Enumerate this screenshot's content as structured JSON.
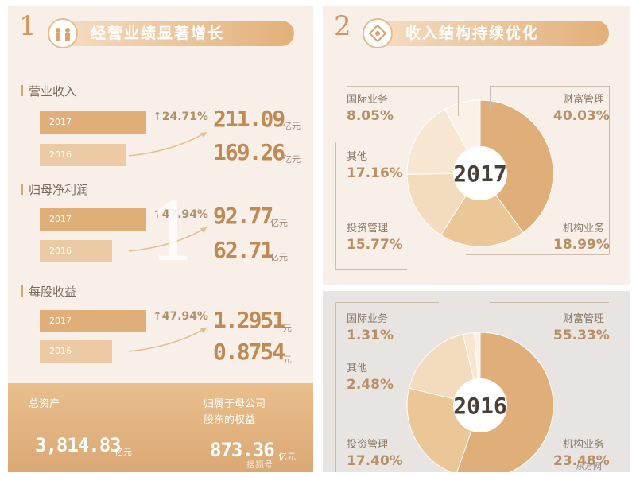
{
  "left": {
    "number": "1",
    "header": "经营业绩显著增长",
    "watermark": "1",
    "sections": [
      {
        "label": "营业收入",
        "bar_2017": "2017",
        "bar_2016": "2016",
        "growth": "24.71%",
        "v2017": "211.09",
        "v2016": "169.26",
        "unit": "亿元",
        "fill_2017": 0.56,
        "fill_2016": 0.45
      },
      {
        "label": "归母净利润",
        "bar_2017": "2017",
        "bar_2016": "2016",
        "growth": "47.94%",
        "v2017": "92.77",
        "v2016": "62.71",
        "unit": "亿元",
        "fill_2017": 0.56,
        "fill_2016": 0.38
      },
      {
        "label": "每股收益",
        "bar_2017": "2017",
        "bar_2016": "2016",
        "growth": "47.94%",
        "v2017": "1.2951",
        "v2016": "0.8754",
        "unit": "元",
        "fill_2017": 0.56,
        "fill_2016": 0.38
      }
    ],
    "footer": {
      "total_assets_label": "总资产",
      "total_assets_value": "3,814.83",
      "total_assets_unit": "亿元",
      "equity_label_1": "归属于母公司",
      "equity_label_2": "股东的权益",
      "equity_value": "873.36",
      "equity_unit": "亿元"
    },
    "credit": "搜狐号"
  },
  "right": {
    "number": "2",
    "header": "收入结构持续优化",
    "credit": "东方网"
  },
  "chart_data": [
    {
      "type": "bar",
      "categories": [
        "2017",
        "2016"
      ],
      "series": [
        {
          "name": "营业收入",
          "values": [
            211.09,
            169.26
          ]
        },
        {
          "name": "归母净利润",
          "values": [
            92.77,
            62.71
          ]
        },
        {
          "name": "每股收益",
          "values": [
            1.2951,
            0.8754
          ]
        }
      ],
      "title": "经营业绩显著增长"
    },
    {
      "type": "pie",
      "title": "2017",
      "labels": [
        "财富管理",
        "机构业务",
        "投资管理",
        "其他",
        "国际业务"
      ],
      "display": [
        "40.03%",
        "18.99%",
        "15.77%",
        "17.16%",
        "8.05%"
      ],
      "values": [
        40.03,
        18.99,
        15.77,
        17.16,
        8.05
      ]
    },
    {
      "type": "pie",
      "title": "2016",
      "labels": [
        "财富管理",
        "机构业务",
        "投资管理",
        "其他",
        "国际业务"
      ],
      "display": [
        "55.33%",
        "23.48%",
        "17.40%",
        "2.48%",
        "1.31%"
      ],
      "values": [
        55.33,
        23.48,
        17.4,
        2.48,
        1.31
      ]
    }
  ],
  "colors": {
    "accent": "#dfae79",
    "pale": "#eccaa4",
    "text": "#c08a55",
    "bg": "#f8efe8",
    "bg2016": "#e8e4e1"
  }
}
